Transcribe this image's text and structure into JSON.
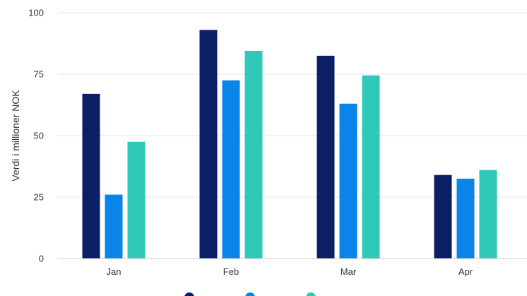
{
  "chart_data": {
    "type": "bar",
    "ylabel": "Verdi i millioner NOK",
    "xlabel": "",
    "ylim": [
      0,
      100
    ],
    "yticks": [
      0,
      25,
      50,
      75,
      100
    ],
    "grid": true,
    "legend_position": "bottom",
    "categories": [
      "Jan",
      "Feb",
      "Mar",
      "Apr"
    ],
    "series": [
      {
        "values": [
          67,
          93,
          82.5,
          34
        ],
        "color": "#0a1f64"
      },
      {
        "values": [
          26,
          72.5,
          63,
          32.5
        ],
        "color": "#0a84e8"
      },
      {
        "values": [
          47.5,
          84.5,
          74.5,
          36
        ],
        "color": "#2ec9b9"
      }
    ]
  }
}
